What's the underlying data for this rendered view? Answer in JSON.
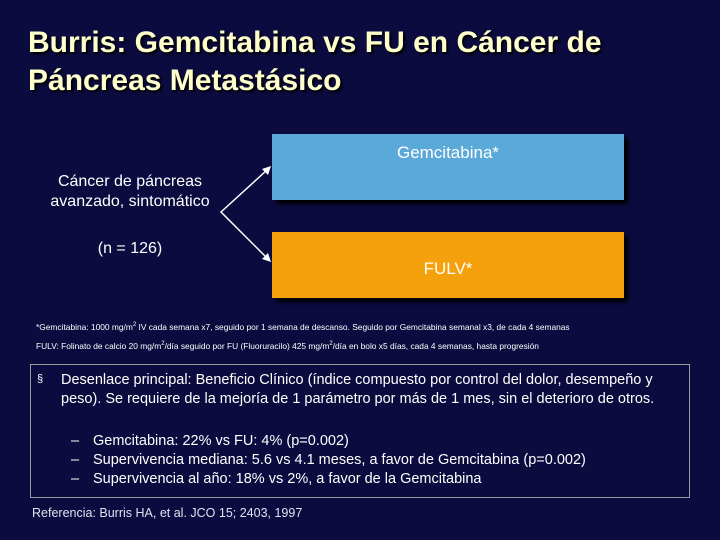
{
  "title": "Burris: Gemcitabina vs FU en Cáncer de Páncreas Metastásico",
  "population": {
    "description": "Cáncer de páncreas avanzado, sintomático",
    "n": "(n = 126)"
  },
  "arms": {
    "gemcitabine": "Gemcitabina*",
    "fu": "FULV*"
  },
  "footnotes": {
    "gem_pre": "*Gemcitabina: 1000 mg/m",
    "gem_sup": "2",
    "gem_post": " IV cada semana x7, seguido por 1 semana de descanso. Seguido por Gemcitabina semanal x3, de cada 4 semanas",
    "fu_pre": "FULV: Folinato de calcio 20 mg/m",
    "fu_sup1": "2",
    "fu_mid": "/día seguido por FU (Fluoruracilo) 425 mg/m",
    "fu_sup2": "2",
    "fu_post": "/día en bolo x5 días, cada 4 semanas, hasta progresión"
  },
  "outcome": {
    "bullet": "§",
    "main": "Desenlace principal: Beneficio Clínico (índice compuesto por control del dolor, desempeño y peso). Se requiere de la mejoría de 1 parámetro por más de 1 mes, sin el deterioro de otros.",
    "dash": "–",
    "sub": [
      "Gemcitabina: 22% vs FU: 4% (p=0.002)",
      "Supervivencia mediana: 5.6 vs 4.1 meses, a favor de Gemcitabina (p=0.002)",
      "Supervivencia al año: 18% vs 2%, a favor de la Gemcitabina"
    ]
  },
  "reference": "Referencia: Burris HA, et al. JCO 15; 2403, 1997",
  "colors": {
    "background": "#0b0b3f",
    "title": "#ffffcc",
    "gemcitabine_arm": "#5aa9d8",
    "fu_arm": "#f5a10d"
  }
}
